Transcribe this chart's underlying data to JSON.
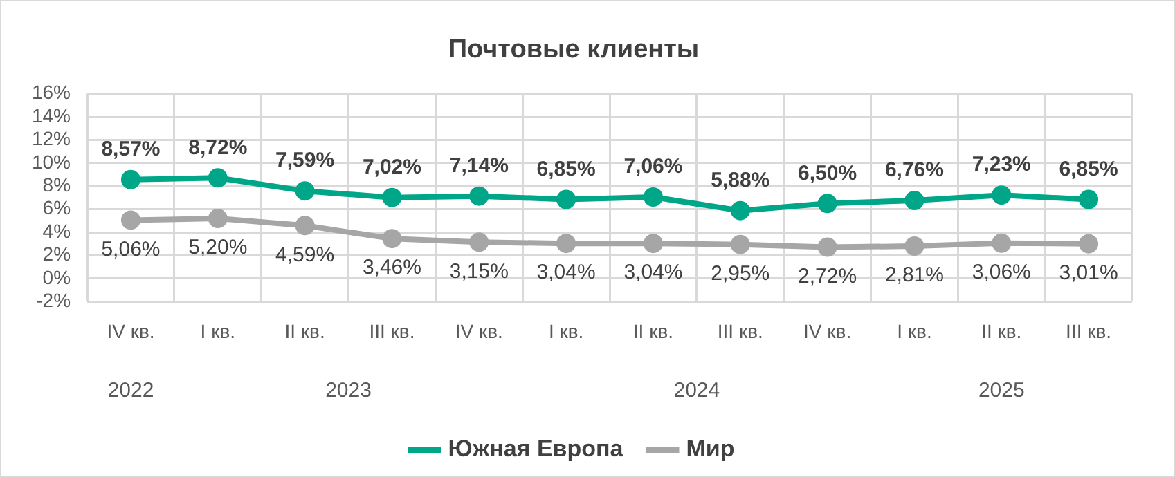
{
  "chart_data": {
    "type": "line",
    "title": "Почтовые клиенты",
    "categories": [
      "IV кв.",
      "I кв.",
      "II кв.",
      "III кв.",
      "IV кв.",
      "I кв.",
      "II кв.",
      "III кв.",
      "IV кв.",
      "I кв.",
      "II кв.",
      "III кв."
    ],
    "series": [
      {
        "name": "Южная Европа",
        "color": "#00a688",
        "values": [
          8.57,
          8.72,
          7.59,
          7.02,
          7.14,
          6.85,
          7.06,
          5.88,
          6.5,
          6.76,
          7.23,
          6.85
        ],
        "value_labels": [
          "8,57%",
          "8,72%",
          "7,59%",
          "7,02%",
          "7,14%",
          "6,85%",
          "7,06%",
          "5,88%",
          "6,50%",
          "6,76%",
          "7,23%",
          "6,85%"
        ]
      },
      {
        "name": "Мир",
        "color": "#a6a6a6",
        "values": [
          5.06,
          5.2,
          4.59,
          3.46,
          3.15,
          3.04,
          3.04,
          2.95,
          2.72,
          2.81,
          3.06,
          3.01
        ],
        "value_labels": [
          "5,06%",
          "5,20%",
          "4,59%",
          "3,46%",
          "3,15%",
          "3,04%",
          "3,04%",
          "2,95%",
          "2,72%",
          "2,81%",
          "3,06%",
          "3,01%"
        ]
      }
    ],
    "annotations": [
      "2022",
      "2023",
      "2024",
      "2025"
    ],
    "ylim": [
      -2,
      16
    ],
    "yticks": [
      {
        "value": -2,
        "label": "-2%"
      },
      {
        "value": 0,
        "label": "0%"
      },
      {
        "value": 2,
        "label": "2%"
      },
      {
        "value": 4,
        "label": "4%"
      },
      {
        "value": 6,
        "label": "6%"
      },
      {
        "value": 8,
        "label": "8%"
      },
      {
        "value": 10,
        "label": "10%"
      },
      {
        "value": 12,
        "label": "12%"
      },
      {
        "value": 14,
        "label": "14%"
      },
      {
        "value": 16,
        "label": "16%"
      }
    ],
    "grid": true,
    "legend": "bottom",
    "marker": "circle",
    "line_style": "solid"
  }
}
